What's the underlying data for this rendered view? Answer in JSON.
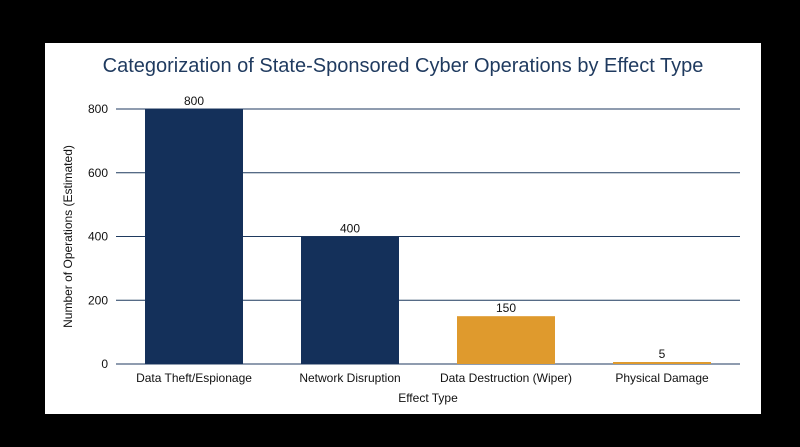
{
  "chart_data": {
    "type": "bar",
    "title": "Categorization of State-Sponsored Cyber Operations by Effect Type",
    "xlabel": "Effect Type",
    "ylabel": "Number of Operations (Estimated)",
    "categories": [
      "Data Theft/Espionage",
      "Network Disruption",
      "Data Destruction (Wiper)",
      "Physical Damage"
    ],
    "values": [
      800,
      400,
      150,
      5
    ],
    "data_labels": [
      "800",
      "400",
      "150",
      "5"
    ],
    "bar_colors": [
      "#14305a",
      "#14305a",
      "#df9a2d",
      "#df9a2d"
    ],
    "ylim": [
      0,
      800
    ],
    "yticks": [
      0,
      200,
      400,
      600,
      800
    ],
    "ytick_labels": [
      "0",
      "200",
      "400",
      "600",
      "800"
    ],
    "grid": true,
    "legend": "none",
    "colors": {
      "title": "#1f3a5f",
      "grid": "#1f3a5f",
      "background": "#ffffff",
      "frame": "#000000"
    }
  }
}
